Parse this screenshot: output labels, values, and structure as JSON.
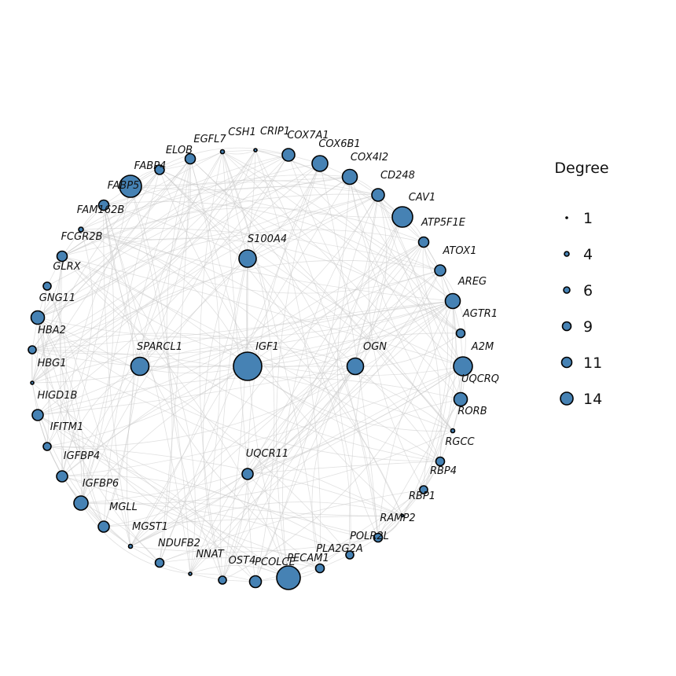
{
  "chart_data": {
    "type": "network",
    "layout": "circle with inner nodes",
    "node_color": "#4682b4",
    "edge_color": "#c8c8c8",
    "nodes": [
      {
        "name": "IGF1",
        "degree": 14
      },
      {
        "name": "S100A4",
        "degree": 9
      },
      {
        "name": "SPARCL1",
        "degree": 10
      },
      {
        "name": "OGN",
        "degree": 9
      },
      {
        "name": "UQCR11",
        "degree": 6
      },
      {
        "name": "CSH1",
        "degree": 3
      },
      {
        "name": "CRIP1",
        "degree": 2
      },
      {
        "name": "COX7A1",
        "degree": 8
      },
      {
        "name": "COX6B1",
        "degree": 9
      },
      {
        "name": "COX4I2",
        "degree": 8
      },
      {
        "name": "CD248",
        "degree": 7
      },
      {
        "name": "CAV1",
        "degree": 11
      },
      {
        "name": "ATP5F1E",
        "degree": 6
      },
      {
        "name": "ATOX1",
        "degree": 6
      },
      {
        "name": "AREG",
        "degree": 8
      },
      {
        "name": "AGTR1",
        "degree": 5
      },
      {
        "name": "A2M",
        "degree": 10
      },
      {
        "name": "UQCRQ",
        "degree": 7
      },
      {
        "name": "RORB",
        "degree": 2
      },
      {
        "name": "RGCC",
        "degree": 5
      },
      {
        "name": "RBP4",
        "degree": 5
      },
      {
        "name": "RBP1",
        "degree": 1
      },
      {
        "name": "RAMP2",
        "degree": 6
      },
      {
        "name": "POLR2L",
        "degree": 5
      },
      {
        "name": "PLA2G2A",
        "degree": 5
      },
      {
        "name": "PECAM1",
        "degree": 13
      },
      {
        "name": "PCOLCE",
        "degree": 7
      },
      {
        "name": "OST4",
        "degree": 5
      },
      {
        "name": "NNAT",
        "degree": 2
      },
      {
        "name": "NDUFB2",
        "degree": 5
      },
      {
        "name": "MGST1",
        "degree": 2
      },
      {
        "name": "MGLL",
        "degree": 6
      },
      {
        "name": "IGFBP6",
        "degree": 8
      },
      {
        "name": "IGFBP4",
        "degree": 6
      },
      {
        "name": "IFITM1",
        "degree": 5
      },
      {
        "name": "HIGD1B",
        "degree": 6
      },
      {
        "name": "HBG1",
        "degree": 2
      },
      {
        "name": "HBA2",
        "degree": 5
      },
      {
        "name": "GNG11",
        "degree": 7
      },
      {
        "name": "GLRX",
        "degree": 5
      },
      {
        "name": "FCGR2B",
        "degree": 6
      },
      {
        "name": "FAM162B",
        "degree": 3
      },
      {
        "name": "FABP5",
        "degree": 6
      },
      {
        "name": "FABP4",
        "degree": 12
      },
      {
        "name": "ELOB",
        "degree": 5
      },
      {
        "name": "EGFL7",
        "degree": 6
      }
    ],
    "legend": {
      "title": "Degree",
      "placement": "right",
      "entries": [
        "1",
        "4",
        "6",
        "9",
        "11",
        "14"
      ]
    }
  }
}
